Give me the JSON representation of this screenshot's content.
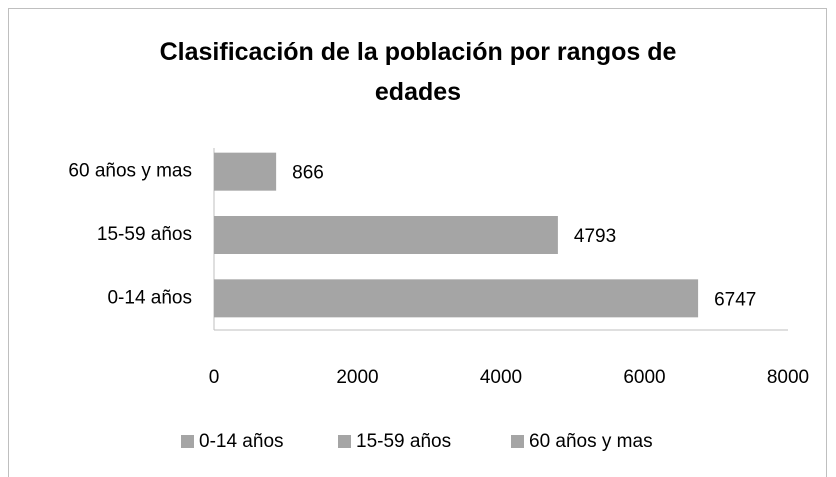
{
  "chart_data": {
    "type": "barh",
    "title": "Clasificación de la población por rangos de edades",
    "categories": [
      "0-14 años",
      "15-59 años",
      "60 años y mas"
    ],
    "series": [
      {
        "name": "0-14 años",
        "color": "#a5a5a5",
        "values": [
          6747,
          null,
          null
        ]
      },
      {
        "name": "15-59 años",
        "color": "#a5a5a5",
        "values": [
          null,
          4793,
          null
        ]
      },
      {
        "name": "60 años y mas",
        "color": "#a5a5a5",
        "values": [
          null,
          null,
          866
        ]
      }
    ],
    "xlim": [
      0,
      8000
    ],
    "xticks": [
      0,
      2000,
      4000,
      6000,
      8000
    ],
    "grid": false,
    "legend": "bottom"
  }
}
